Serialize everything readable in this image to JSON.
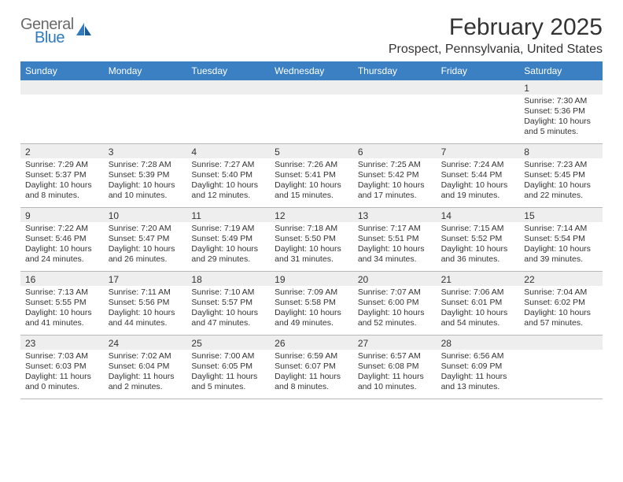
{
  "logo": {
    "word1": "General",
    "word2": "Blue"
  },
  "title": "February 2025",
  "location": "Prospect, Pennsylvania, United States",
  "colors": {
    "header_bg": "#3a80c3",
    "header_text": "#ffffff",
    "daynum_bg": "#eeeeee",
    "border": "#b8b8b8",
    "text": "#333333",
    "logo_gray": "#6a6a6a",
    "logo_blue": "#2e7bbf"
  },
  "day_names": [
    "Sunday",
    "Monday",
    "Tuesday",
    "Wednesday",
    "Thursday",
    "Friday",
    "Saturday"
  ],
  "weeks": [
    [
      {
        "n": "",
        "sr": "",
        "ss": "",
        "dl": ""
      },
      {
        "n": "",
        "sr": "",
        "ss": "",
        "dl": ""
      },
      {
        "n": "",
        "sr": "",
        "ss": "",
        "dl": ""
      },
      {
        "n": "",
        "sr": "",
        "ss": "",
        "dl": ""
      },
      {
        "n": "",
        "sr": "",
        "ss": "",
        "dl": ""
      },
      {
        "n": "",
        "sr": "",
        "ss": "",
        "dl": ""
      },
      {
        "n": "1",
        "sr": "Sunrise: 7:30 AM",
        "ss": "Sunset: 5:36 PM",
        "dl": "Daylight: 10 hours and 5 minutes."
      }
    ],
    [
      {
        "n": "2",
        "sr": "Sunrise: 7:29 AM",
        "ss": "Sunset: 5:37 PM",
        "dl": "Daylight: 10 hours and 8 minutes."
      },
      {
        "n": "3",
        "sr": "Sunrise: 7:28 AM",
        "ss": "Sunset: 5:39 PM",
        "dl": "Daylight: 10 hours and 10 minutes."
      },
      {
        "n": "4",
        "sr": "Sunrise: 7:27 AM",
        "ss": "Sunset: 5:40 PM",
        "dl": "Daylight: 10 hours and 12 minutes."
      },
      {
        "n": "5",
        "sr": "Sunrise: 7:26 AM",
        "ss": "Sunset: 5:41 PM",
        "dl": "Daylight: 10 hours and 15 minutes."
      },
      {
        "n": "6",
        "sr": "Sunrise: 7:25 AM",
        "ss": "Sunset: 5:42 PM",
        "dl": "Daylight: 10 hours and 17 minutes."
      },
      {
        "n": "7",
        "sr": "Sunrise: 7:24 AM",
        "ss": "Sunset: 5:44 PM",
        "dl": "Daylight: 10 hours and 19 minutes."
      },
      {
        "n": "8",
        "sr": "Sunrise: 7:23 AM",
        "ss": "Sunset: 5:45 PM",
        "dl": "Daylight: 10 hours and 22 minutes."
      }
    ],
    [
      {
        "n": "9",
        "sr": "Sunrise: 7:22 AM",
        "ss": "Sunset: 5:46 PM",
        "dl": "Daylight: 10 hours and 24 minutes."
      },
      {
        "n": "10",
        "sr": "Sunrise: 7:20 AM",
        "ss": "Sunset: 5:47 PM",
        "dl": "Daylight: 10 hours and 26 minutes."
      },
      {
        "n": "11",
        "sr": "Sunrise: 7:19 AM",
        "ss": "Sunset: 5:49 PM",
        "dl": "Daylight: 10 hours and 29 minutes."
      },
      {
        "n": "12",
        "sr": "Sunrise: 7:18 AM",
        "ss": "Sunset: 5:50 PM",
        "dl": "Daylight: 10 hours and 31 minutes."
      },
      {
        "n": "13",
        "sr": "Sunrise: 7:17 AM",
        "ss": "Sunset: 5:51 PM",
        "dl": "Daylight: 10 hours and 34 minutes."
      },
      {
        "n": "14",
        "sr": "Sunrise: 7:15 AM",
        "ss": "Sunset: 5:52 PM",
        "dl": "Daylight: 10 hours and 36 minutes."
      },
      {
        "n": "15",
        "sr": "Sunrise: 7:14 AM",
        "ss": "Sunset: 5:54 PM",
        "dl": "Daylight: 10 hours and 39 minutes."
      }
    ],
    [
      {
        "n": "16",
        "sr": "Sunrise: 7:13 AM",
        "ss": "Sunset: 5:55 PM",
        "dl": "Daylight: 10 hours and 41 minutes."
      },
      {
        "n": "17",
        "sr": "Sunrise: 7:11 AM",
        "ss": "Sunset: 5:56 PM",
        "dl": "Daylight: 10 hours and 44 minutes."
      },
      {
        "n": "18",
        "sr": "Sunrise: 7:10 AM",
        "ss": "Sunset: 5:57 PM",
        "dl": "Daylight: 10 hours and 47 minutes."
      },
      {
        "n": "19",
        "sr": "Sunrise: 7:09 AM",
        "ss": "Sunset: 5:58 PM",
        "dl": "Daylight: 10 hours and 49 minutes."
      },
      {
        "n": "20",
        "sr": "Sunrise: 7:07 AM",
        "ss": "Sunset: 6:00 PM",
        "dl": "Daylight: 10 hours and 52 minutes."
      },
      {
        "n": "21",
        "sr": "Sunrise: 7:06 AM",
        "ss": "Sunset: 6:01 PM",
        "dl": "Daylight: 10 hours and 54 minutes."
      },
      {
        "n": "22",
        "sr": "Sunrise: 7:04 AM",
        "ss": "Sunset: 6:02 PM",
        "dl": "Daylight: 10 hours and 57 minutes."
      }
    ],
    [
      {
        "n": "23",
        "sr": "Sunrise: 7:03 AM",
        "ss": "Sunset: 6:03 PM",
        "dl": "Daylight: 11 hours and 0 minutes."
      },
      {
        "n": "24",
        "sr": "Sunrise: 7:02 AM",
        "ss": "Sunset: 6:04 PM",
        "dl": "Daylight: 11 hours and 2 minutes."
      },
      {
        "n": "25",
        "sr": "Sunrise: 7:00 AM",
        "ss": "Sunset: 6:05 PM",
        "dl": "Daylight: 11 hours and 5 minutes."
      },
      {
        "n": "26",
        "sr": "Sunrise: 6:59 AM",
        "ss": "Sunset: 6:07 PM",
        "dl": "Daylight: 11 hours and 8 minutes."
      },
      {
        "n": "27",
        "sr": "Sunrise: 6:57 AM",
        "ss": "Sunset: 6:08 PM",
        "dl": "Daylight: 11 hours and 10 minutes."
      },
      {
        "n": "28",
        "sr": "Sunrise: 6:56 AM",
        "ss": "Sunset: 6:09 PM",
        "dl": "Daylight: 11 hours and 13 minutes."
      },
      {
        "n": "",
        "sr": "",
        "ss": "",
        "dl": ""
      }
    ]
  ]
}
